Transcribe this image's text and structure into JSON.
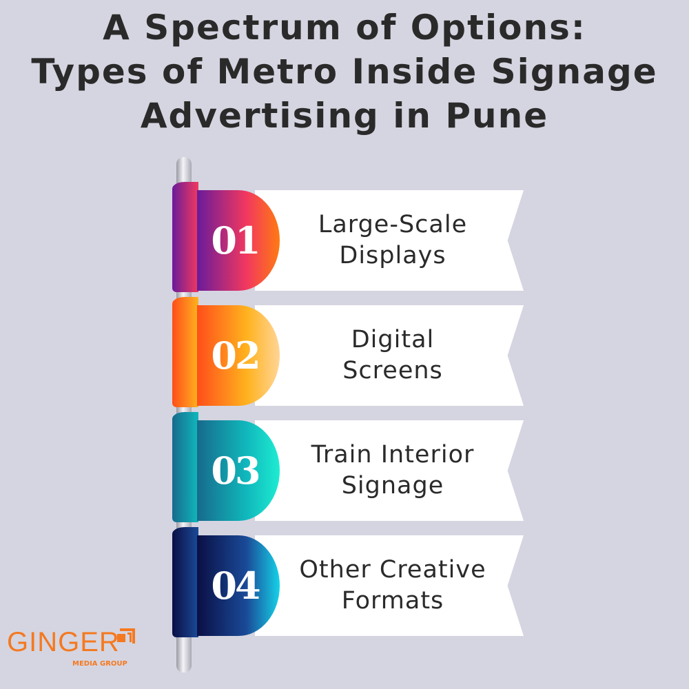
{
  "title": "A Spectrum of Options:\nTypes of Metro Inside Signage\nAdvertising in Pune",
  "title_lines": [
    "A Spectrum of Options:",
    "Types of Metro Inside Signage",
    "Advertising in Pune"
  ],
  "items": [
    {
      "number": "01",
      "label": "Large-Scale\nDisplays",
      "colors": [
        "#6a1b9a",
        "#f2385f",
        "#ff7a12"
      ]
    },
    {
      "number": "02",
      "label": "Digital\nScreens",
      "colors": [
        "#ff4e1a",
        "#ffb21e",
        "#ffd596"
      ]
    },
    {
      "number": "03",
      "label": "Train Interior\nSignage",
      "colors": [
        "#176a8c",
        "#10b8bc",
        "#1eecd2"
      ]
    },
    {
      "number": "04",
      "label": "Other Creative\nFormats",
      "colors": [
        "#0a0f45",
        "#1a4a98",
        "#16d2e8"
      ]
    }
  ],
  "logo": {
    "name": "GINGER",
    "subtitle": "MEDIA GROUP",
    "color": "#f47920"
  },
  "background": "#d5d5e1"
}
